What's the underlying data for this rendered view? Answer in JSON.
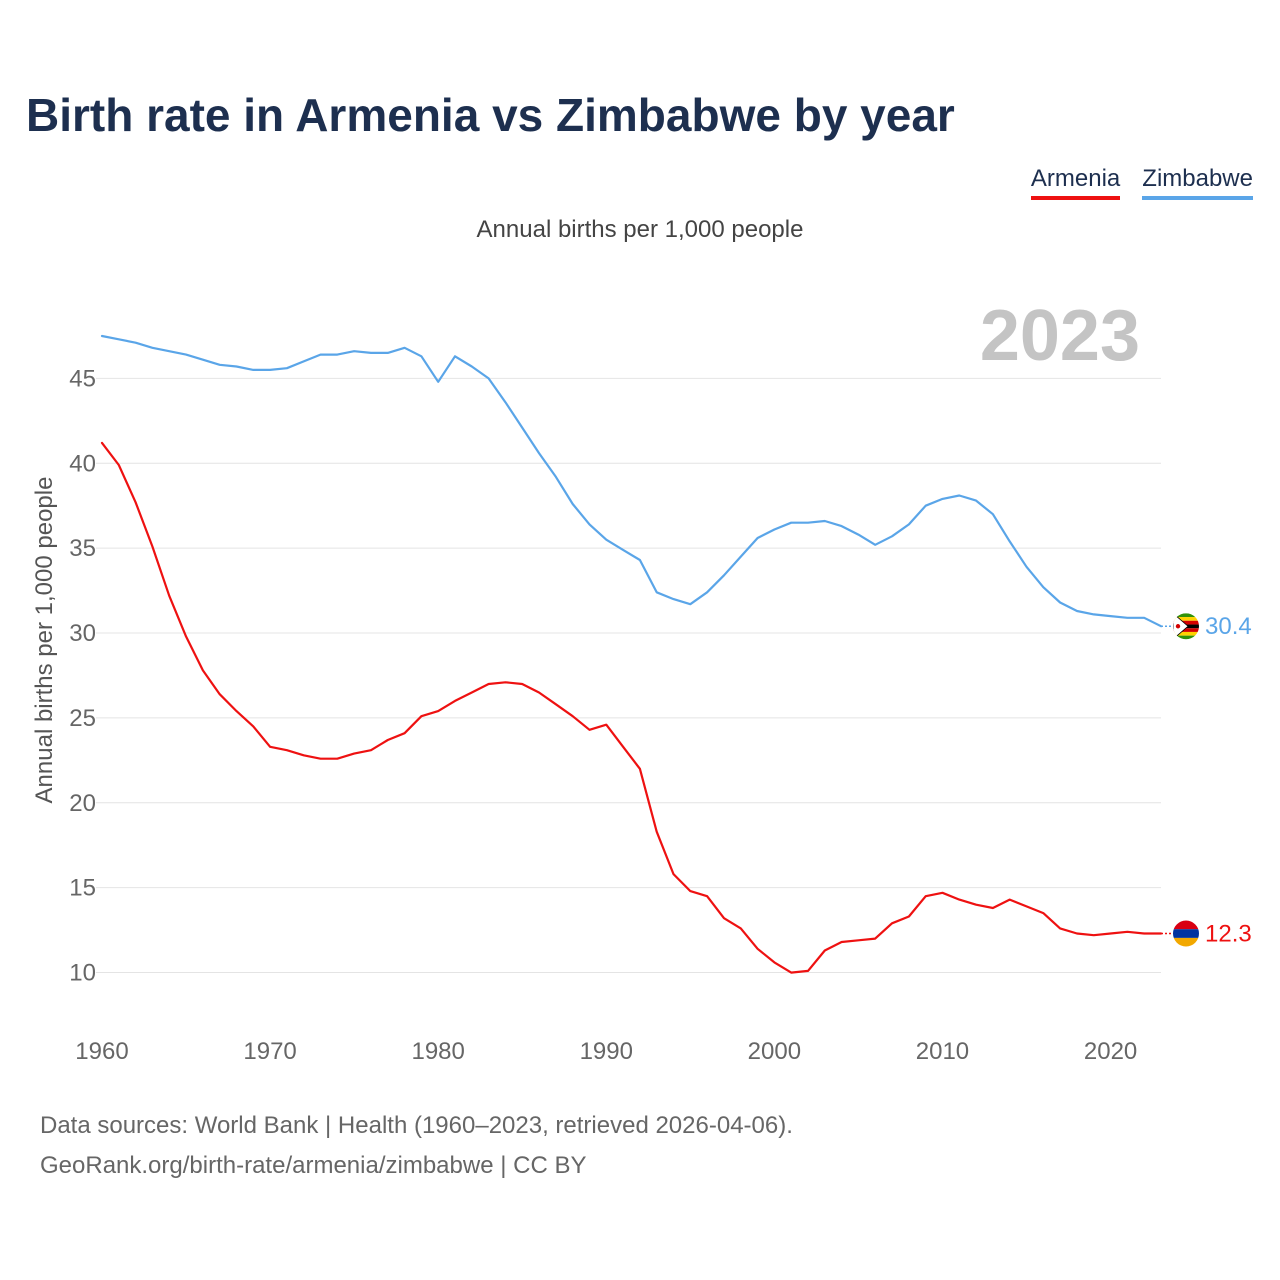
{
  "title": "Birth rate in Armenia vs Zimbabwe by year",
  "subtitle": "Annual births per 1,000 people",
  "legend": [
    {
      "label": "Armenia",
      "color": "#ee1111"
    },
    {
      "label": "Zimbabwe",
      "color": "#5aa5e8"
    }
  ],
  "year_marker": "2023",
  "footer": {
    "line1": "Data sources: World Bank | Health (1960–2023, retrieved 2026-04-06).",
    "line2": "GeoRank.org/birth-rate/armenia/zimbabwe | CC BY"
  },
  "chart_data": {
    "type": "line",
    "title": "Birth rate in Armenia vs Zimbabwe by year",
    "xlabel": "",
    "ylabel": "Annual births per 1,000 people",
    "xlim": [
      1960,
      2023
    ],
    "ylim": [
      7.5,
      49.5
    ],
    "grid": true,
    "x_ticks": [
      1960,
      1970,
      1980,
      1990,
      2000,
      2010,
      2020
    ],
    "y_ticks": [
      10,
      15,
      20,
      25,
      30,
      35,
      40,
      45
    ],
    "x": [
      1960,
      1961,
      1962,
      1963,
      1964,
      1965,
      1966,
      1967,
      1968,
      1969,
      1970,
      1971,
      1972,
      1973,
      1974,
      1975,
      1976,
      1977,
      1978,
      1979,
      1980,
      1981,
      1982,
      1983,
      1984,
      1985,
      1986,
      1987,
      1988,
      1989,
      1990,
      1991,
      1992,
      1993,
      1994,
      1995,
      1996,
      1997,
      1998,
      1999,
      2000,
      2001,
      2002,
      2003,
      2004,
      2005,
      2006,
      2007,
      2008,
      2009,
      2010,
      2011,
      2012,
      2013,
      2014,
      2015,
      2016,
      2017,
      2018,
      2019,
      2020,
      2021,
      2022,
      2023
    ],
    "series": [
      {
        "name": "Armenia",
        "color": "#ee1111",
        "end_label": "12.3",
        "values": [
          41.2,
          39.9,
          37.7,
          35.1,
          32.2,
          29.8,
          27.8,
          26.4,
          25.4,
          24.5,
          23.3,
          23.1,
          22.8,
          22.6,
          22.6,
          22.9,
          23.1,
          23.7,
          24.1,
          25.1,
          25.4,
          26.0,
          26.5,
          27.0,
          27.1,
          27.0,
          26.5,
          25.8,
          25.1,
          24.3,
          24.6,
          23.3,
          22.0,
          18.3,
          15.8,
          14.8,
          14.5,
          13.2,
          12.6,
          11.4,
          10.6,
          10.0,
          10.1,
          11.3,
          11.8,
          11.9,
          12.0,
          12.9,
          13.3,
          14.5,
          14.7,
          14.3,
          14.0,
          13.8,
          14.3,
          13.9,
          13.5,
          12.6,
          12.3,
          12.2,
          12.3,
          12.4,
          12.3,
          12.3
        ]
      },
      {
        "name": "Zimbabwe",
        "color": "#5aa5e8",
        "end_label": "30.4",
        "values": [
          47.5,
          47.3,
          47.1,
          46.8,
          46.6,
          46.4,
          46.1,
          45.8,
          45.7,
          45.5,
          45.5,
          45.6,
          46.0,
          46.4,
          46.4,
          46.6,
          46.5,
          46.5,
          46.8,
          46.3,
          44.8,
          46.3,
          45.7,
          45.0,
          43.6,
          42.1,
          40.6,
          39.2,
          37.6,
          36.4,
          35.5,
          34.9,
          34.3,
          32.4,
          32.0,
          31.7,
          32.4,
          33.4,
          34.5,
          35.6,
          36.1,
          36.5,
          36.5,
          36.6,
          36.3,
          35.8,
          35.2,
          35.7,
          36.4,
          37.5,
          37.9,
          38.1,
          37.8,
          37.0,
          35.4,
          33.9,
          32.7,
          31.8,
          31.3,
          31.1,
          31.0,
          30.9,
          30.9,
          30.4
        ]
      }
    ]
  }
}
